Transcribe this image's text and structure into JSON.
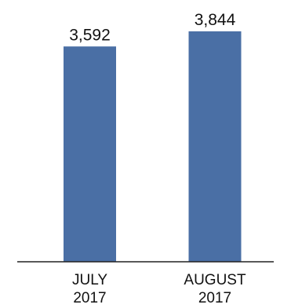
{
  "chart_data": {
    "type": "bar",
    "categories": [
      [
        "JULY",
        "2017"
      ],
      [
        "AUGUST",
        "2017"
      ]
    ],
    "values": [
      3592,
      3844
    ],
    "value_labels": [
      "3,592",
      "3,844"
    ],
    "title": "",
    "xlabel": "",
    "ylabel": "",
    "ylim": [
      0,
      3844
    ],
    "grid": false,
    "legend": "none",
    "colors": {
      "bar": "#4a6fa5",
      "axis": "#222222",
      "text": "#111111"
    }
  }
}
